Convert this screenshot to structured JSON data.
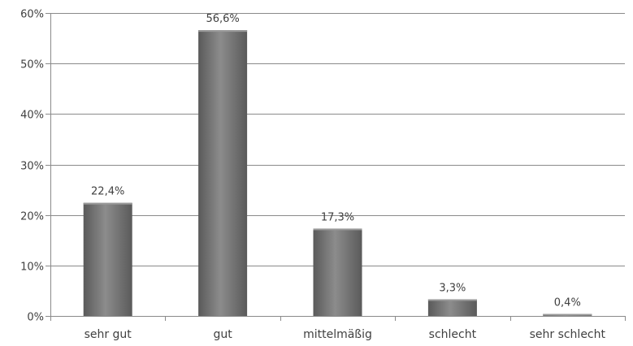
{
  "chart_data": {
    "type": "bar",
    "categories": [
      "sehr gut",
      "gut",
      "mittelmäßig",
      "schlecht",
      "sehr schlecht"
    ],
    "values": [
      22.4,
      56.6,
      17.3,
      3.3,
      0.4
    ],
    "data_labels": [
      "22,4%",
      "56,6%",
      "17,3%",
      "3,3%",
      "0,4%"
    ],
    "y_ticks": [
      0,
      10,
      20,
      30,
      40,
      50,
      60
    ],
    "y_tick_labels": [
      "0%",
      "10%",
      "20%",
      "30%",
      "40%",
      "50%",
      "60%"
    ],
    "ylim": [
      0,
      60
    ],
    "grid": true,
    "legend": "none",
    "title": "",
    "xlabel": "",
    "ylabel": "",
    "colors": {
      "bar_dark": "#5a5a5a",
      "bar_light": "#8c8c8c",
      "grid": "#8a8a8a",
      "text": "#404040"
    }
  }
}
